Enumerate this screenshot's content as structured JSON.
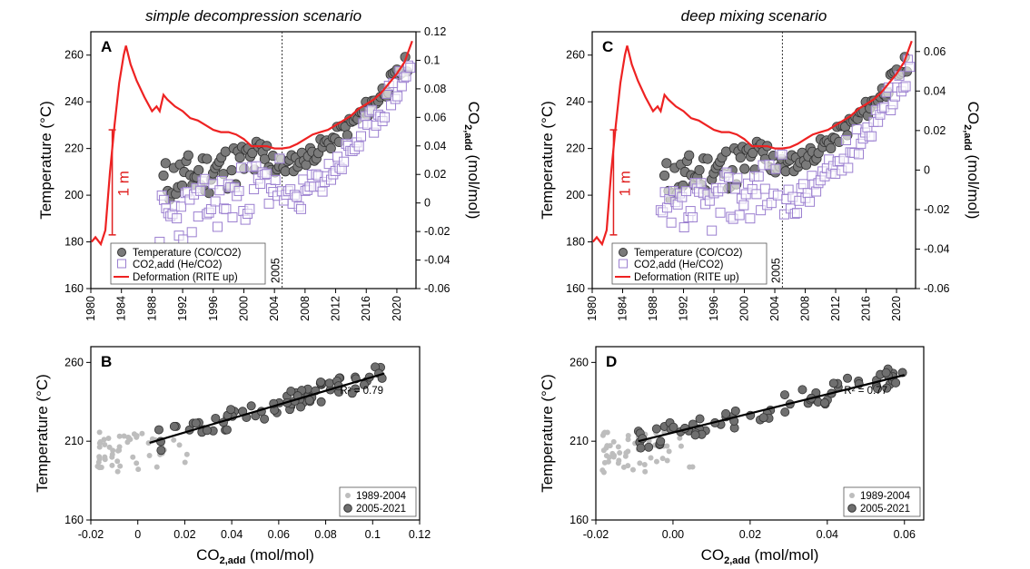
{
  "chart_data": [
    {
      "type": "scatter+line",
      "panel": "A",
      "title": "simple decompression scenario",
      "ylabel": "Temperature (°C)",
      "ylim": [
        160,
        270
      ],
      "yticks": [
        "160",
        "180",
        "200",
        "220",
        "240",
        "260"
      ],
      "y2label_main": "CO",
      "y2label_sub": "2,add",
      "y2label_unit": " (mol/mol)",
      "y2lim": [
        -0.06,
        0.12
      ],
      "y2ticks": [
        "-0.06",
        "-0.04",
        "-0.02",
        "0",
        "0.02",
        "0.04",
        "0.06",
        "0.08",
        "0.1",
        "0.12"
      ],
      "xlim": [
        1980,
        2022.5
      ],
      "xticks": [
        "1980",
        "1984",
        "1988",
        "1992",
        "1996",
        "2000",
        "2004",
        "2008",
        "2012",
        "2016",
        "2020"
      ],
      "vline_label": "2005",
      "scale_bar_label": "1 m",
      "legend": [
        "Temperature (CO/CO2)",
        "CO2,add (He/CO2)",
        "Deformation (RITE up)"
      ],
      "deformation": [
        [
          1980.1,
          180
        ],
        [
          1980.6,
          182
        ],
        [
          1981.3,
          179
        ],
        [
          1981.9,
          185
        ],
        [
          1982.5,
          210
        ],
        [
          1983.1,
          230
        ],
        [
          1983.7,
          248
        ],
        [
          1984.3,
          260
        ],
        [
          1984.6,
          264
        ],
        [
          1985.2,
          256
        ],
        [
          1986,
          249
        ],
        [
          1987,
          242
        ],
        [
          1988,
          236
        ],
        [
          1988.6,
          238
        ],
        [
          1989,
          236
        ],
        [
          1989.5,
          243
        ],
        [
          1990,
          241
        ],
        [
          1991,
          238
        ],
        [
          1992,
          236
        ],
        [
          1993,
          233
        ],
        [
          1994,
          232
        ],
        [
          1995,
          230
        ],
        [
          1996,
          228
        ],
        [
          1997,
          227
        ],
        [
          1998,
          227
        ],
        [
          1999,
          226
        ],
        [
          2000,
          224
        ],
        [
          2001,
          221
        ],
        [
          2002,
          221
        ],
        [
          2003,
          221
        ],
        [
          2004,
          220
        ],
        [
          2005,
          220
        ],
        [
          2006,
          220.5
        ],
        [
          2007,
          222
        ],
        [
          2008,
          224
        ],
        [
          2009,
          226
        ],
        [
          2010,
          227
        ],
        [
          2011,
          228
        ],
        [
          2012,
          230
        ],
        [
          2013,
          232
        ],
        [
          2014,
          234
        ],
        [
          2015,
          237
        ],
        [
          2016,
          239
        ],
        [
          2017,
          241
        ],
        [
          2018,
          244
        ],
        [
          2019,
          248
        ],
        [
          2020,
          252
        ],
        [
          2021,
          257
        ],
        [
          2022,
          266
        ]
      ],
      "temperature_seed": 11,
      "co2_seed": 23
    },
    {
      "type": "scatter",
      "panel": "B",
      "xlabel_main": "CO",
      "xlabel_sub": "2,add",
      "xlabel_unit": " (mol/mol)",
      "ylabel": "Temperature (°C)",
      "xlim": [
        -0.02,
        0.12
      ],
      "xticks": [
        "-0.02",
        "0",
        "0.02",
        "0.04",
        "0.06",
        "0.08",
        "0.1",
        "0.12"
      ],
      "ylim": [
        160,
        270
      ],
      "yticks": [
        "160",
        "210",
        "260"
      ],
      "r2": "R² = 0.79",
      "fit": [
        [
          0.005,
          209
        ],
        [
          0.105,
          253
        ]
      ],
      "legend": [
        "1989-2004",
        "2005-2021"
      ]
    },
    {
      "type": "scatter+line",
      "panel": "C",
      "title": "deep mixing scenario",
      "ylabel": "Temperature (°C)",
      "ylim": [
        160,
        270
      ],
      "yticks": [
        "160",
        "180",
        "200",
        "220",
        "240",
        "260"
      ],
      "y2label_main": "CO",
      "y2label_sub": "2,add",
      "y2label_unit": " (mol/mol)",
      "y2lim": [
        -0.06,
        0.07
      ],
      "y2ticks": [
        "-0.06",
        "-0.04",
        "-0.02",
        "0",
        "0.02",
        "0.04",
        "0.06"
      ],
      "xlim": [
        1980,
        2022.5
      ],
      "xticks": [
        "1980",
        "1984",
        "1988",
        "1992",
        "1996",
        "2000",
        "2004",
        "2008",
        "2012",
        "2016",
        "2020"
      ],
      "vline_label": "2005",
      "scale_bar_label": "1 m",
      "legend": [
        "Temperature (CO/CO2)",
        "CO2,add (He/CO2)",
        "Deformation (RITE up)"
      ],
      "deformation": [
        [
          1980.1,
          180
        ],
        [
          1980.6,
          182
        ],
        [
          1981.3,
          179
        ],
        [
          1981.9,
          185
        ],
        [
          1982.5,
          210
        ],
        [
          1983.1,
          230
        ],
        [
          1983.7,
          248
        ],
        [
          1984.3,
          260
        ],
        [
          1984.6,
          264
        ],
        [
          1985.2,
          256
        ],
        [
          1986,
          249
        ],
        [
          1987,
          242
        ],
        [
          1988,
          236
        ],
        [
          1988.6,
          238
        ],
        [
          1989,
          236
        ],
        [
          1989.5,
          243
        ],
        [
          1990,
          241
        ],
        [
          1991,
          238
        ],
        [
          1992,
          236
        ],
        [
          1993,
          233
        ],
        [
          1994,
          232
        ],
        [
          1995,
          230
        ],
        [
          1996,
          228
        ],
        [
          1997,
          227
        ],
        [
          1998,
          227
        ],
        [
          1999,
          226
        ],
        [
          2000,
          224
        ],
        [
          2001,
          221
        ],
        [
          2002,
          221
        ],
        [
          2003,
          221
        ],
        [
          2004,
          220
        ],
        [
          2005,
          220
        ],
        [
          2006,
          220.5
        ],
        [
          2007,
          222
        ],
        [
          2008,
          224
        ],
        [
          2009,
          226
        ],
        [
          2010,
          227
        ],
        [
          2011,
          228
        ],
        [
          2012,
          230
        ],
        [
          2013,
          232
        ],
        [
          2014,
          234
        ],
        [
          2015,
          237
        ],
        [
          2016,
          239
        ],
        [
          2017,
          241
        ],
        [
          2018,
          244
        ],
        [
          2019,
          248
        ],
        [
          2020,
          252
        ],
        [
          2021,
          257
        ],
        [
          2022,
          266
        ]
      ],
      "temperature_seed": 11,
      "co2_seed": 37
    },
    {
      "type": "scatter",
      "panel": "D",
      "xlabel_main": "CO",
      "xlabel_sub": "2,add",
      "xlabel_unit": " (mol/mol)",
      "ylabel": "Temperature (°C)",
      "xlim": [
        -0.02,
        0.065
      ],
      "xticks": [
        "-0.02",
        "0.00",
        "0.02",
        "0.04",
        "0.06"
      ],
      "ylim": [
        160,
        270
      ],
      "yticks": [
        "160",
        "210",
        "260"
      ],
      "r2": "R² = 0.77",
      "fit": [
        [
          -0.009,
          210
        ],
        [
          0.06,
          252
        ]
      ],
      "legend": [
        "1989-2004",
        "2005-2021"
      ]
    }
  ]
}
